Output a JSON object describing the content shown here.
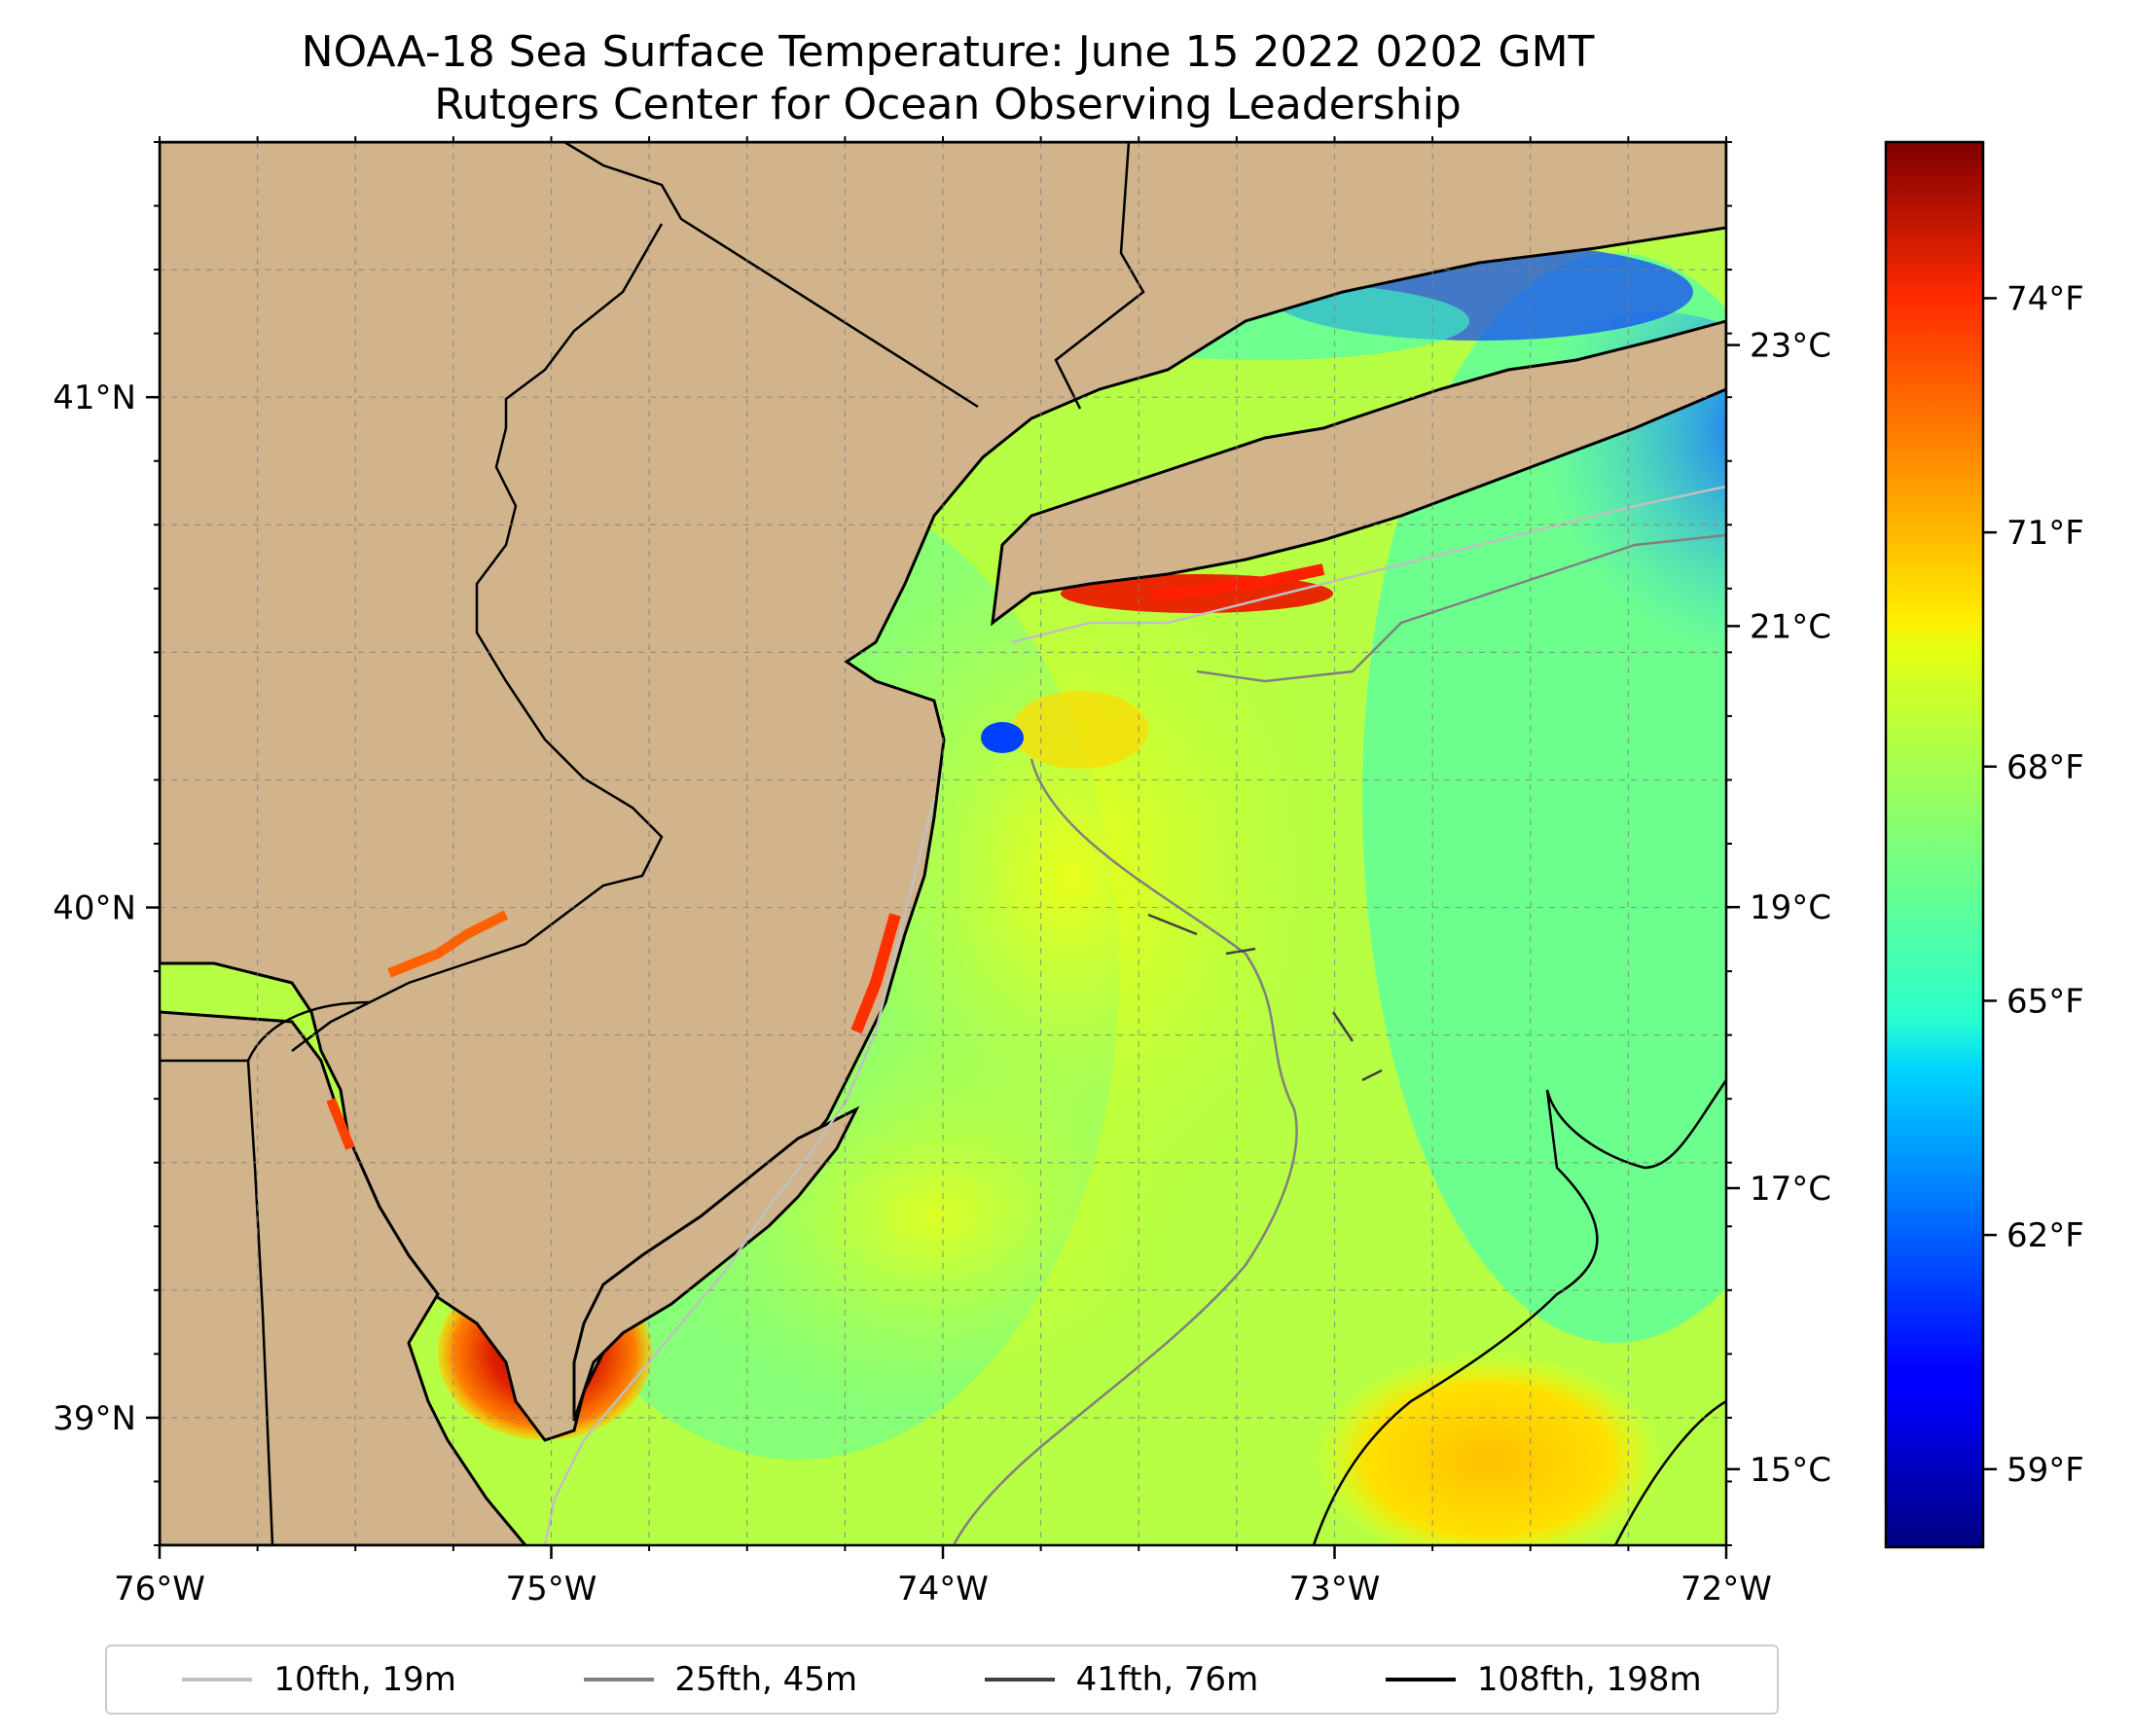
{
  "title": {
    "line1": "NOAA-18 Sea Surface Temperature: June 15 2022 0202 GMT",
    "line2": "Rutgers Center for Ocean Observing Leadership"
  },
  "map": {
    "lon_range": [
      -76,
      -72
    ],
    "lat_range": [
      38.75,
      41.5
    ],
    "lon_ticks": [
      "76°W",
      "75°W",
      "74°W",
      "73°W",
      "72°W"
    ],
    "lat_ticks": [
      "41°N",
      "40°N",
      "39°N"
    ],
    "land_color": "#d2b48c",
    "gridlines": true
  },
  "colorbar": {
    "colormap": "jet",
    "fahrenheit_ticks": [
      "74°F",
      "71°F",
      "68°F",
      "65°F",
      "62°F",
      "59°F"
    ],
    "celsius_ticks": [
      "23°C",
      "21°C",
      "19°C",
      "17°C",
      "15°C"
    ],
    "range_f": [
      58,
      76
    ]
  },
  "legend": [
    {
      "label": "10fth, 19m",
      "color": "#c0c0c0"
    },
    {
      "label": "25fth, 45m",
      "color": "#808080"
    },
    {
      "label": "41fth, 76m",
      "color": "#404040"
    },
    {
      "label": "108fth, 198m",
      "color": "#000000"
    }
  ]
}
